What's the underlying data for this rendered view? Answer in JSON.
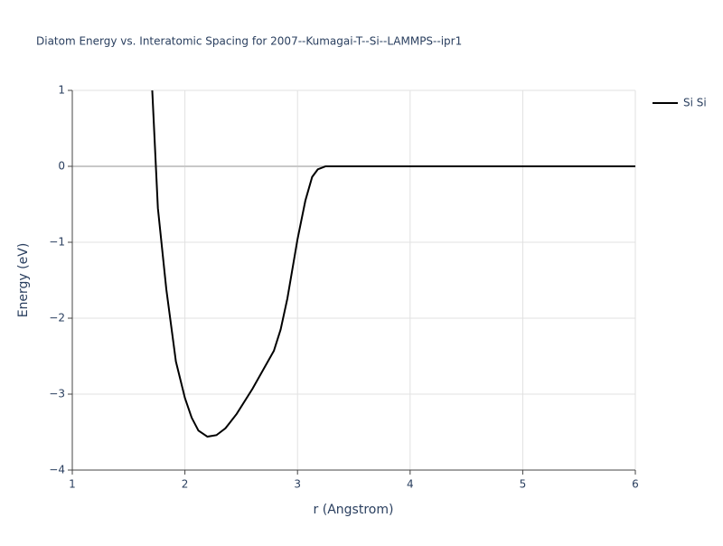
{
  "chart_data": {
    "type": "line",
    "title": "Diatom Energy vs. Interatomic Spacing for 2007--Kumagai-T--Si--LAMMPS--ipr1",
    "x_label": "r (Angstrom)",
    "y_label": "Energy (eV)",
    "x": [
      1.71,
      1.76,
      1.835,
      1.92,
      2.0,
      2.06,
      2.12,
      2.2,
      2.28,
      2.36,
      2.46,
      2.6,
      2.79,
      2.85,
      2.91,
      3.0,
      3.07,
      3.13,
      3.18,
      3.25,
      6.0
    ],
    "series": [
      {
        "name": "Si Si",
        "color": "#000000",
        "values": [
          1.0,
          -0.55,
          -1.62,
          -2.57,
          -3.05,
          -3.31,
          -3.48,
          -3.56,
          -3.54,
          -3.45,
          -3.26,
          -2.93,
          -2.43,
          -2.15,
          -1.74,
          -0.96,
          -0.45,
          -0.14,
          -0.04,
          0,
          0
        ]
      }
    ],
    "xlim": [
      1,
      6
    ],
    "ylim": [
      -4,
      1
    ],
    "xticks": [
      1,
      2,
      3,
      4,
      5,
      6
    ],
    "yticks": [
      {
        "value": -4,
        "label": "−4"
      },
      {
        "value": -3,
        "label": "−3"
      },
      {
        "value": -2,
        "label": "−2"
      },
      {
        "value": -1,
        "label": "−1"
      },
      0,
      1
    ],
    "grid": true,
    "legend": "right"
  }
}
